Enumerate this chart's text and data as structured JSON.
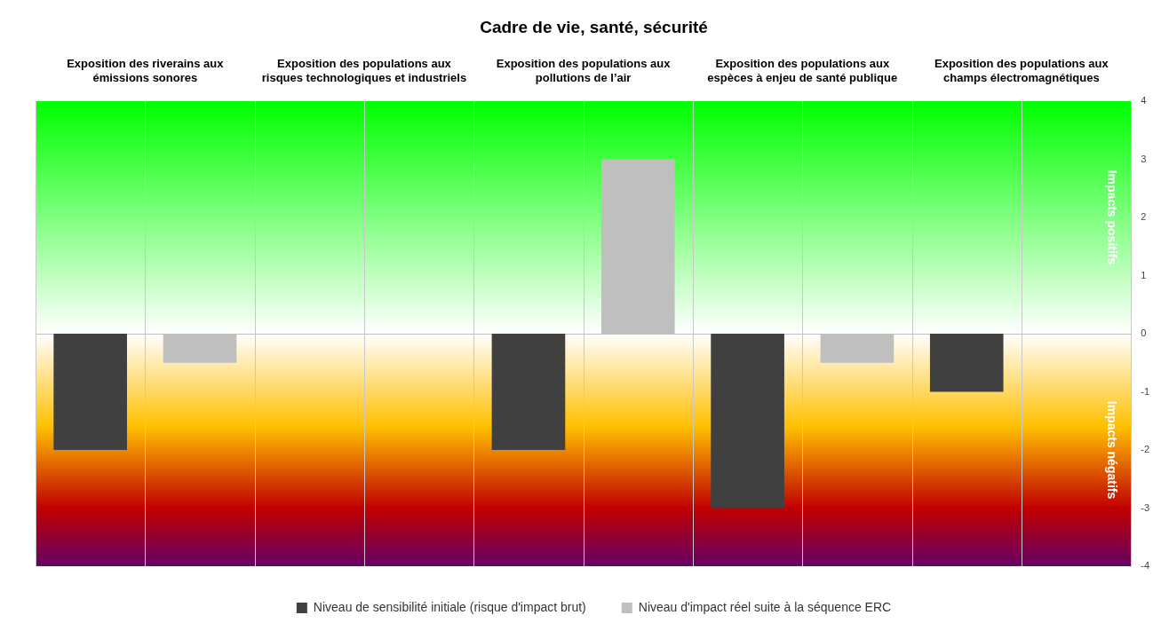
{
  "chart_data": {
    "type": "bar",
    "title": "Cadre de vie, santé, sécurité",
    "categories": [
      "Exposition des riverains aux émissions sonores",
      "Exposition des populations aux risques technologiques et industriels",
      "Exposition des populations aux pollutions de l’air",
      "Exposition des populations aux espèces à enjeu de santé publique",
      "Exposition des populations aux champs électromagnétiques"
    ],
    "series": [
      {
        "name": "Niveau de sensibilité initiale (risque d'impact brut)",
        "color": "#404040",
        "values": [
          -2,
          null,
          -2,
          -3,
          -1
        ]
      },
      {
        "name": "Niveau d'impact réel suite à la séquence ERC",
        "color": "#bfbfbf",
        "values": [
          -0.5,
          null,
          3,
          -0.5,
          null
        ]
      }
    ],
    "ylim": [
      -4,
      4
    ],
    "yticks": [
      -4,
      -3,
      -2,
      -1,
      0,
      1,
      2,
      3,
      4
    ],
    "bands": [
      {
        "axis": "y",
        "from": 0,
        "to": 4,
        "label": "Impacts positifs",
        "color": "#00ff00"
      },
      {
        "axis": "y",
        "from": -4,
        "to": 0,
        "label": "Impacts négatifs",
        "color": "#660066"
      }
    ],
    "grid": "x",
    "legend": "bottom"
  }
}
